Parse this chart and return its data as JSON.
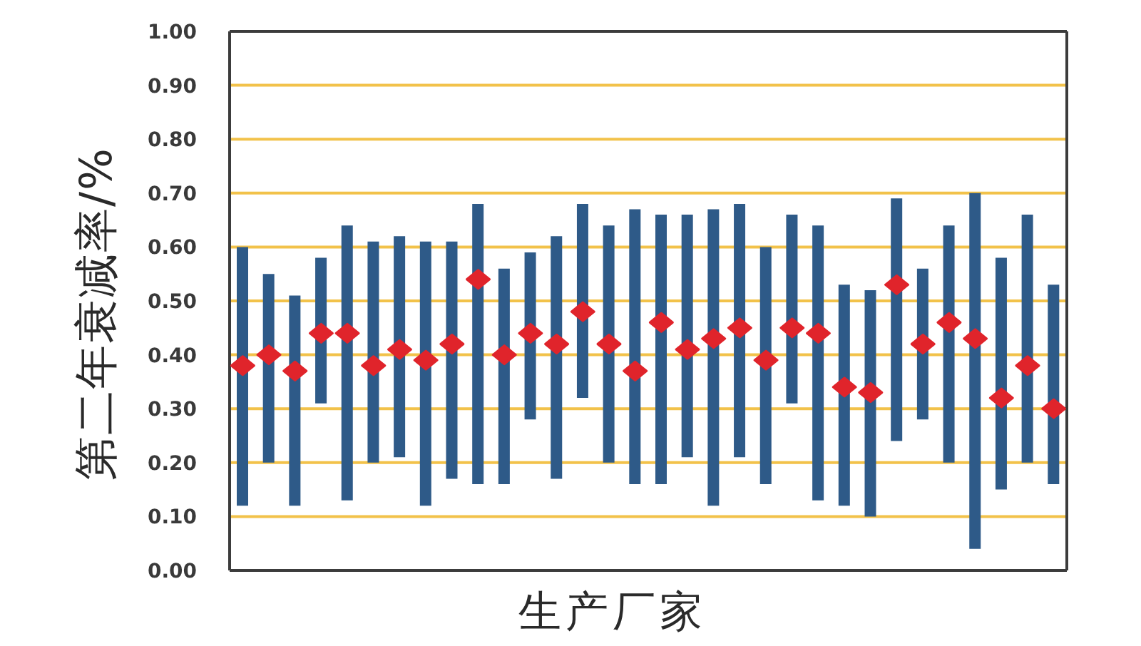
{
  "chart_data": {
    "type": "bar",
    "xlabel": "生产厂家",
    "ylabel": "第二年衰减率/%",
    "categories": [
      null,
      null,
      null,
      null,
      null,
      null,
      null,
      null,
      null,
      null,
      null,
      null,
      null,
      null,
      null,
      null,
      null,
      null,
      null,
      null,
      null,
      null,
      null,
      null,
      null,
      null,
      null,
      null,
      null,
      null,
      null,
      null
    ],
    "series": [
      {
        "color": "#2e5a88",
        "base": [
          0.12,
          0.2,
          0.12,
          0.31,
          0.13,
          0.2,
          0.21,
          0.12,
          0.17,
          0.16,
          0.16,
          0.28,
          0.17,
          0.32,
          0.2,
          0.16,
          0.16,
          0.21,
          0.12,
          0.21,
          0.16,
          0.31,
          0.13,
          0.12,
          0.1,
          0.24,
          0.28,
          0.2,
          0.04,
          0.15,
          0.2,
          0.16
        ],
        "values": [
          0.48,
          0.35,
          0.39,
          0.27,
          0.51,
          0.41,
          0.41,
          0.49,
          0.44,
          0.52,
          0.4,
          0.31,
          0.45,
          0.36,
          0.44,
          0.51,
          0.5,
          0.45,
          0.55,
          0.47,
          0.44,
          0.35,
          0.51,
          0.41,
          0.42,
          0.45,
          0.28,
          0.44,
          0.66,
          0.43,
          0.46,
          0.37
        ]
      },
      {
        "type": "scatter",
        "color": "#e0242b",
        "values": [
          0.38,
          0.4,
          0.37,
          0.44,
          0.44,
          0.38,
          0.41,
          0.39,
          0.42,
          0.54,
          0.4,
          0.44,
          0.42,
          0.48,
          0.42,
          0.37,
          0.46,
          0.41,
          0.43,
          0.45,
          0.39,
          0.45,
          0.44,
          0.34,
          0.33,
          0.53,
          0.42,
          0.46,
          0.43,
          0.32,
          0.38,
          0.3
        ]
      }
    ],
    "marker": "diamond",
    "ylim": [
      0,
      1
    ],
    "yticks": [
      {
        "value": 0,
        "label": "0.00"
      },
      {
        "value": 0.1,
        "label": "0.10"
      },
      {
        "value": 0.2,
        "label": "0.20"
      },
      {
        "value": 0.3,
        "label": "0.30"
      },
      {
        "value": 0.4,
        "label": "0.40"
      },
      {
        "value": 0.5,
        "label": "0.50"
      },
      {
        "value": 0.6,
        "label": "0.60"
      },
      {
        "value": 0.7,
        "label": "0.70"
      },
      {
        "value": 0.8,
        "label": "0.80"
      },
      {
        "value": 0.9,
        "label": "0.90"
      },
      {
        "value": 1,
        "label": "1.00"
      }
    ],
    "grid": "y"
  }
}
